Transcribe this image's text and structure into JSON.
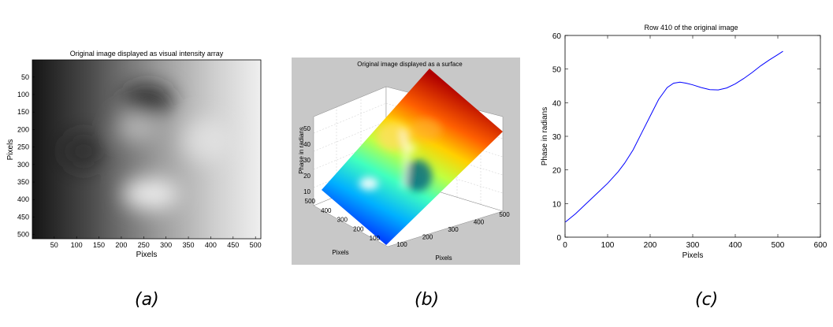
{
  "captions": {
    "a": "(a)",
    "b": "(b)",
    "c": "(c)"
  },
  "chart_data": [
    {
      "id": "a",
      "type": "heatmap",
      "title": "Original image displayed as visual intensity array",
      "xlabel": "Pixels",
      "ylabel": "Pixels",
      "xlim": [
        1,
        512
      ],
      "ylim": [
        1,
        512
      ],
      "y_reversed": true,
      "xticks": [
        50,
        100,
        150,
        200,
        250,
        300,
        350,
        400,
        450,
        500
      ],
      "yticks": [
        50,
        100,
        150,
        200,
        250,
        300,
        350,
        400,
        450,
        500
      ],
      "colormap": "gray",
      "description_values": {
        "gradient": "dark on left to light on right",
        "blobs": [
          {
            "x": 270,
            "y": 115,
            "kind": "dark"
          },
          {
            "x": 115,
            "y": 260,
            "kind": "dark"
          },
          {
            "x": 235,
            "y": 185,
            "kind": "light"
          },
          {
            "x": 265,
            "y": 380,
            "kind": "light"
          }
        ]
      }
    },
    {
      "id": "b",
      "type": "surface",
      "title": "Original image displayed as a surface",
      "xlabel": "Pixels",
      "ylabel": "Pixels",
      "zlabel": "Phase in radians",
      "xticks": [
        100,
        200,
        300,
        400,
        500
      ],
      "yticks": [
        100,
        200,
        300,
        400,
        500
      ],
      "zticks": [
        10,
        20,
        30,
        40,
        50
      ],
      "colormap": "jet",
      "background": "#c8c8c8"
    },
    {
      "id": "c",
      "type": "line",
      "title": "Row 410 of the original image",
      "xlabel": "Pixels",
      "ylabel": "Phase in radians",
      "xlim": [
        0,
        600
      ],
      "ylim": [
        0,
        60
      ],
      "xticks": [
        0,
        100,
        200,
        300,
        400,
        500,
        600
      ],
      "yticks": [
        0,
        10,
        20,
        30,
        40,
        50,
        60
      ],
      "series": [
        {
          "color": "#0000ff",
          "x": [
            1,
            25,
            50,
            75,
            100,
            125,
            140,
            160,
            180,
            200,
            220,
            240,
            255,
            270,
            285,
            300,
            320,
            340,
            360,
            380,
            400,
            420,
            440,
            460,
            480,
            500,
            512
          ],
          "y": [
            4.5,
            7,
            10,
            13,
            16,
            19.5,
            22,
            26,
            31,
            36,
            41,
            44.5,
            45.8,
            46.1,
            45.8,
            45.3,
            44.5,
            43.9,
            43.8,
            44.4,
            45.6,
            47.2,
            49,
            51,
            52.7,
            54.3,
            55.3
          ]
        }
      ]
    }
  ]
}
